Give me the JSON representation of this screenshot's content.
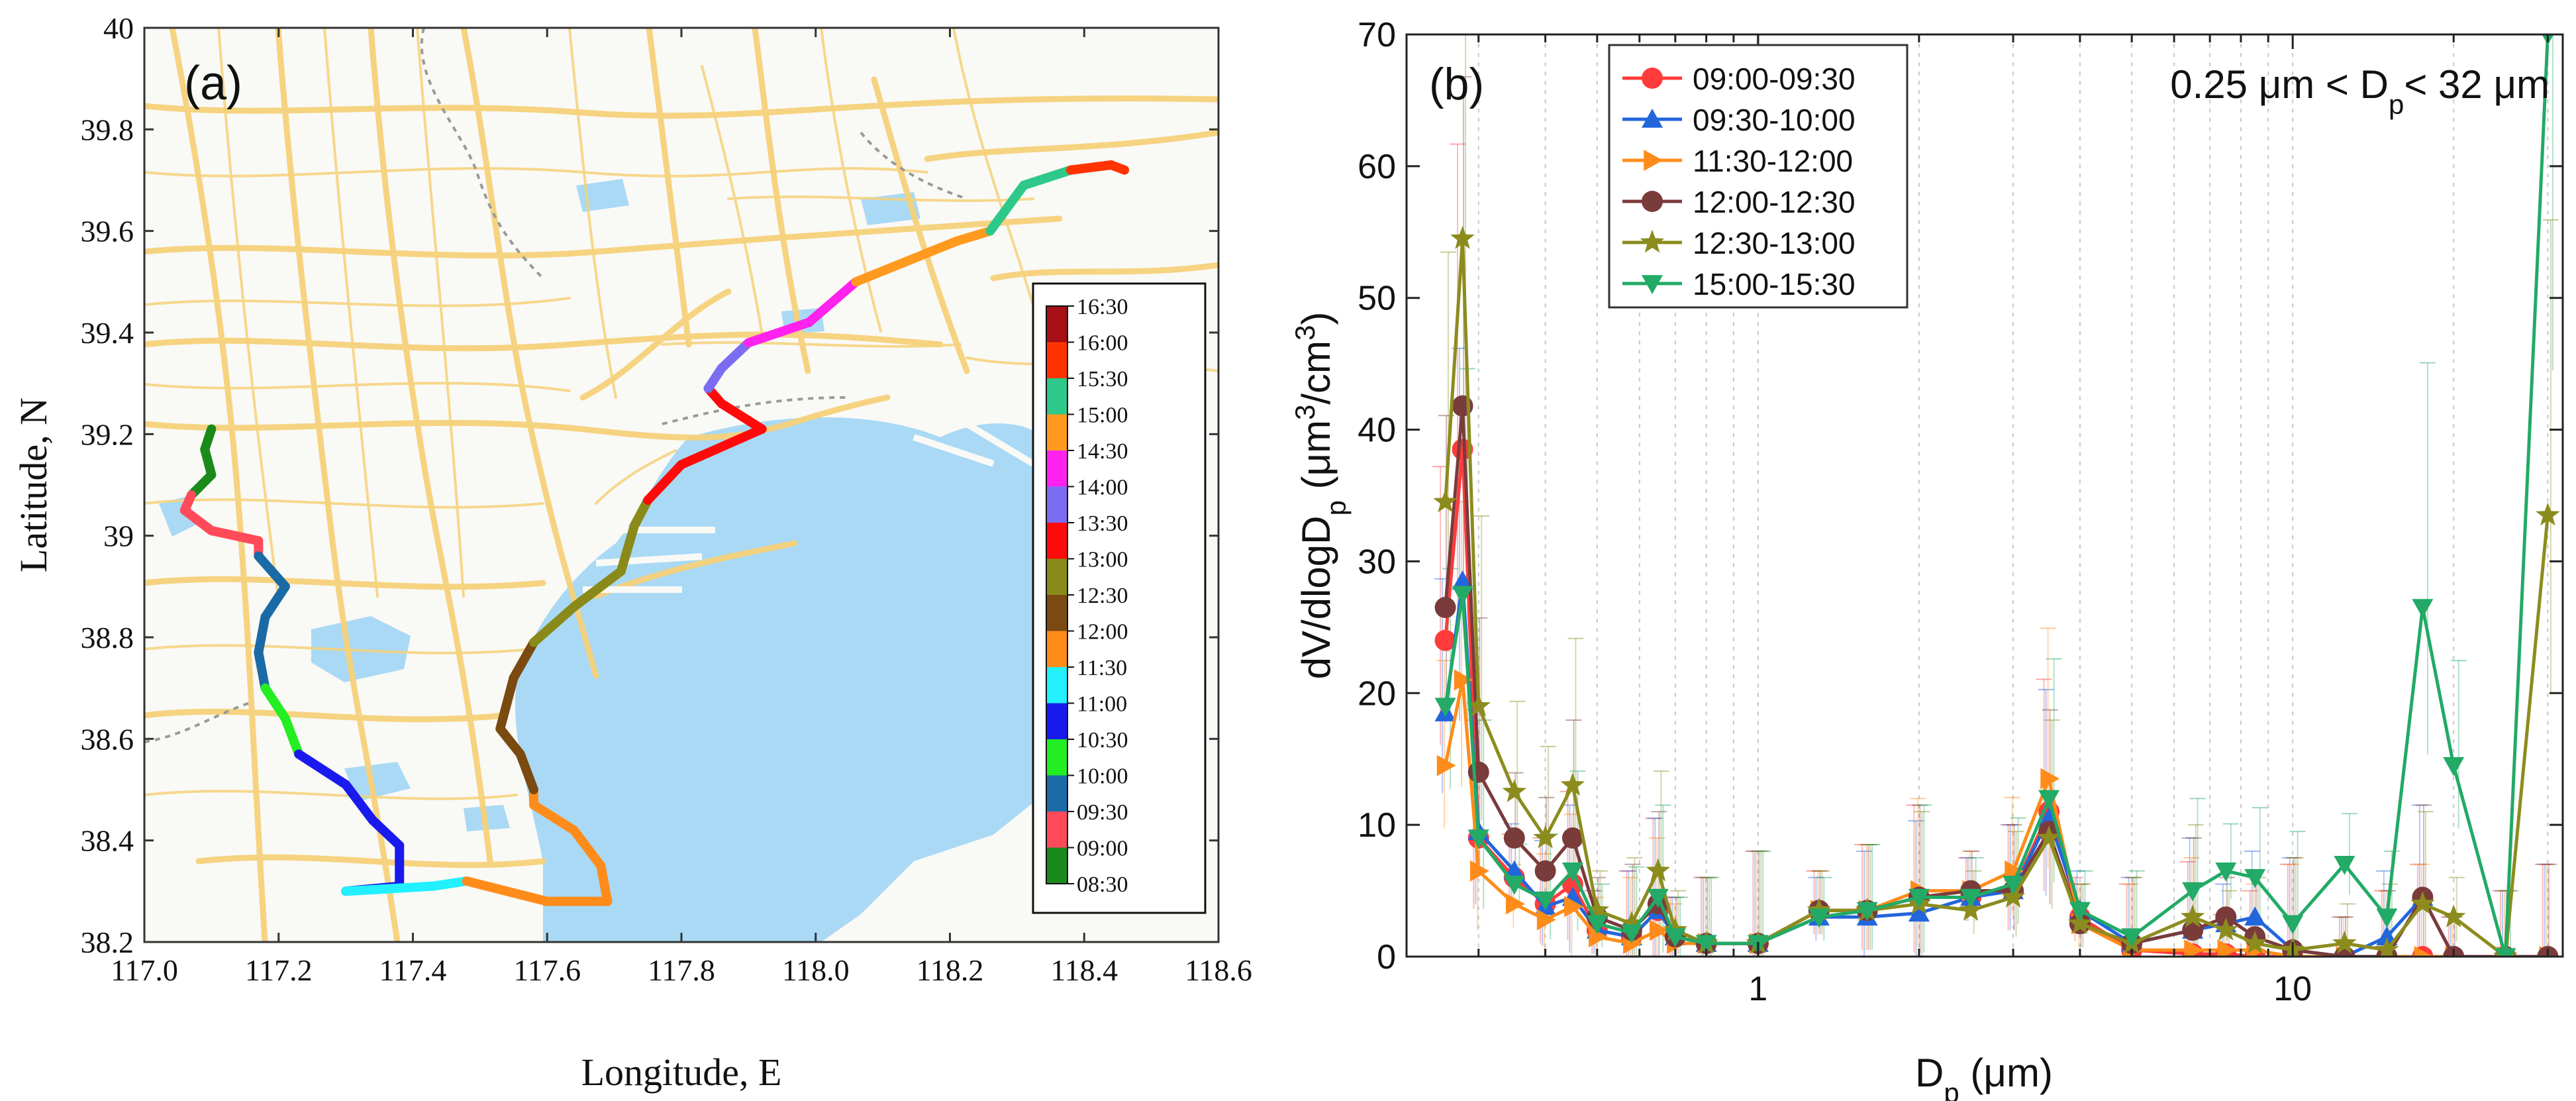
{
  "figure": "Ship-track map and particle volume size distribution",
  "chart_data": [
    {
      "panel": "a",
      "type": "map",
      "panel_label": "(a)",
      "xlabel": "Longitude, E",
      "ylabel": "Latitude, N",
      "xlim": [
        117.0,
        118.6
      ],
      "ylim": [
        38.2,
        40.0
      ],
      "x_ticks": [
        "117.0",
        "117.2",
        "117.4",
        "117.6",
        "117.8",
        "118.0",
        "118.2",
        "118.4",
        "118.6"
      ],
      "y_ticks": [
        "38.2",
        "38.4",
        "38.6",
        "38.8",
        "39",
        "39.2",
        "39.4",
        "39.6",
        "39.8",
        "40"
      ],
      "legend_labels": [
        "16:30",
        "16:00",
        "15:30",
        "15:00",
        "14:30",
        "14:00",
        "13:30",
        "13:00",
        "12:30",
        "12:00",
        "11:30",
        "11:00",
        "10:30",
        "10:00",
        "09:30",
        "09:00",
        "08:30"
      ],
      "legend_colors": [
        "#a50f15",
        "#ff3300",
        "#2ec98a",
        "#ff9a1f",
        "#ff22ee",
        "#7b6cf2",
        "#ff0a0a",
        "#8a8a1a",
        "#7a4a10",
        "#ff8c1a",
        "#22f0ff",
        "#1a1aee",
        "#22ee22",
        "#1a6aa6",
        "#ff4a5a",
        "#1a8a1a"
      ],
      "track": [
        {
          "lon": 117.1,
          "lat": 39.21,
          "color": "#1a8a1a"
        },
        {
          "lon": 117.09,
          "lat": 39.17,
          "color": "#1a8a1a"
        },
        {
          "lon": 117.1,
          "lat": 39.12,
          "color": "#1a8a1a"
        },
        {
          "lon": 117.07,
          "lat": 39.08,
          "color": "#ff4a5a"
        },
        {
          "lon": 117.06,
          "lat": 39.05,
          "color": "#ff4a5a"
        },
        {
          "lon": 117.1,
          "lat": 39.01,
          "color": "#ff4a5a"
        },
        {
          "lon": 117.17,
          "lat": 38.99,
          "color": "#ff4a5a"
        },
        {
          "lon": 117.17,
          "lat": 38.96,
          "color": "#1a6aa6"
        },
        {
          "lon": 117.21,
          "lat": 38.9,
          "color": "#1a6aa6"
        },
        {
          "lon": 117.18,
          "lat": 38.84,
          "color": "#1a6aa6"
        },
        {
          "lon": 117.17,
          "lat": 38.77,
          "color": "#1a6aa6"
        },
        {
          "lon": 117.18,
          "lat": 38.7,
          "color": "#22ee22"
        },
        {
          "lon": 117.21,
          "lat": 38.64,
          "color": "#22ee22"
        },
        {
          "lon": 117.23,
          "lat": 38.57,
          "color": "#1a1aee"
        },
        {
          "lon": 117.3,
          "lat": 38.51,
          "color": "#1a1aee"
        },
        {
          "lon": 117.34,
          "lat": 38.44,
          "color": "#1a1aee"
        },
        {
          "lon": 117.38,
          "lat": 38.39,
          "color": "#1a1aee"
        },
        {
          "lon": 117.38,
          "lat": 38.31,
          "color": "#1a1aee"
        },
        {
          "lon": 117.3,
          "lat": 38.3,
          "color": "#22f0ff"
        },
        {
          "lon": 117.43,
          "lat": 38.31,
          "color": "#22f0ff"
        },
        {
          "lon": 117.48,
          "lat": 38.32,
          "color": "#ff8c1a"
        },
        {
          "lon": 117.6,
          "lat": 38.28,
          "color": "#ff8c1a"
        },
        {
          "lon": 117.69,
          "lat": 38.28,
          "color": "#ff8c1a"
        },
        {
          "lon": 117.68,
          "lat": 38.35,
          "color": "#ff8c1a"
        },
        {
          "lon": 117.64,
          "lat": 38.42,
          "color": "#ff8c1a"
        },
        {
          "lon": 117.58,
          "lat": 38.47,
          "color": "#ff8c1a"
        },
        {
          "lon": 117.58,
          "lat": 38.5,
          "color": "#7a4a10"
        },
        {
          "lon": 117.56,
          "lat": 38.57,
          "color": "#7a4a10"
        },
        {
          "lon": 117.53,
          "lat": 38.62,
          "color": "#7a4a10"
        },
        {
          "lon": 117.55,
          "lat": 38.72,
          "color": "#7a4a10"
        },
        {
          "lon": 117.58,
          "lat": 38.79,
          "color": "#8a8a1a"
        },
        {
          "lon": 117.64,
          "lat": 38.86,
          "color": "#8a8a1a"
        },
        {
          "lon": 117.71,
          "lat": 38.93,
          "color": "#8a8a1a"
        },
        {
          "lon": 117.73,
          "lat": 39.02,
          "color": "#8a8a1a"
        },
        {
          "lon": 117.75,
          "lat": 39.07,
          "color": "#ff0a0a"
        },
        {
          "lon": 117.8,
          "lat": 39.14,
          "color": "#ff0a0a"
        },
        {
          "lon": 117.92,
          "lat": 39.21,
          "color": "#ff0a0a"
        },
        {
          "lon": 117.86,
          "lat": 39.26,
          "color": "#ff0a0a"
        },
        {
          "lon": 117.84,
          "lat": 39.29,
          "color": "#7b6cf2"
        },
        {
          "lon": 117.86,
          "lat": 39.33,
          "color": "#7b6cf2"
        },
        {
          "lon": 117.9,
          "lat": 39.38,
          "color": "#ff22ee"
        },
        {
          "lon": 117.99,
          "lat": 39.42,
          "color": "#ff22ee"
        },
        {
          "lon": 118.06,
          "lat": 39.5,
          "color": "#ff9a1f"
        },
        {
          "lon": 118.21,
          "lat": 39.58,
          "color": "#ff9a1f"
        },
        {
          "lon": 118.26,
          "lat": 39.6,
          "color": "#2ec98a"
        },
        {
          "lon": 118.31,
          "lat": 39.69,
          "color": "#2ec98a"
        },
        {
          "lon": 118.38,
          "lat": 39.72,
          "color": "#ff3300"
        },
        {
          "lon": 118.44,
          "lat": 39.73,
          "color": "#ff3300"
        },
        {
          "lon": 118.46,
          "lat": 39.72,
          "color": "#a50f15"
        }
      ]
    },
    {
      "panel": "b",
      "type": "line",
      "panel_label": "(b)",
      "annotation_prefix": "0.25 μm < D",
      "annotation_sub": "p",
      "annotation_suffix": "< 32 μm",
      "xlabel": "D",
      "xlabel_sub": "p",
      "xlabel_unit": " (μm)",
      "ylabel_prefix": "dV/dlogD",
      "ylabel_sub": "p",
      "ylabel_unit_a": " (μm",
      "ylabel_unit_sup1": "3",
      "ylabel_unit_b": "/cm",
      "ylabel_unit_sup2": "3",
      "ylabel_unit_c": ")",
      "x_scale": "log",
      "xlim": [
        0.22,
        32
      ],
      "ylim": [
        0,
        70
      ],
      "x_tick_labels": [
        "1",
        "10"
      ],
      "y_ticks": [
        0,
        10,
        20,
        30,
        40,
        50,
        60,
        70
      ],
      "x": [
        0.26,
        0.28,
        0.3,
        0.35,
        0.4,
        0.45,
        0.5,
        0.58,
        0.65,
        0.7,
        0.8,
        1.0,
        1.3,
        1.6,
        2.0,
        2.5,
        3.0,
        3.5,
        4.0,
        5.0,
        6.5,
        7.5,
        8.5,
        10.0,
        12.5,
        15.0,
        17.5,
        20.0,
        25.0,
        30.0
      ],
      "series": [
        {
          "name": "09:00-09:30",
          "color": "#ff3b3b",
          "marker": "circle",
          "values": [
            24,
            38.5,
            9,
            6,
            4,
            5.5,
            2,
            1.5,
            3.5,
            1.5,
            1,
            1,
            3.5,
            3.5,
            4.5,
            4.5,
            5,
            11,
            3,
            0.5,
            0.2,
            0.2,
            0,
            0,
            0,
            0,
            0,
            0,
            0,
            0
          ]
        },
        {
          "name": "09:30-10:00",
          "color": "#2266dd",
          "marker": "triangle-up",
          "values": [
            18.5,
            28.5,
            9.5,
            6.5,
            3.8,
            4.5,
            2,
            1.5,
            3.5,
            1.5,
            1,
            1,
            3,
            3,
            3.3,
            4.5,
            5,
            10.5,
            3.5,
            1,
            2,
            2.5,
            3,
            0.5,
            0,
            1.5,
            4.5,
            0,
            0,
            0
          ]
        },
        {
          "name": "11:30-12:00",
          "color": "#ff8c1a",
          "marker": "triangle-right",
          "values": [
            14.5,
            21,
            6.5,
            4,
            2.8,
            3.8,
            1.5,
            1,
            2,
            1,
            1,
            1,
            3.5,
            3.5,
            5,
            5,
            6.5,
            13.5,
            2.5,
            0.5,
            0.5,
            0.5,
            0.5,
            0,
            0,
            0,
            0,
            0,
            0,
            0
          ]
        },
        {
          "name": "12:00-12:30",
          "color": "#7a3b3b",
          "marker": "circle",
          "values": [
            26.5,
            41.8,
            14,
            9,
            6.5,
            9,
            3,
            2,
            4,
            1.5,
            1,
            1,
            3.5,
            3.5,
            4.5,
            5,
            5,
            9.5,
            2.5,
            1,
            2,
            3,
            1.5,
            0.5,
            0,
            0,
            4.5,
            0,
            0,
            0
          ]
        },
        {
          "name": "12:30-13:00",
          "color": "#8c8c1e",
          "marker": "star",
          "values": [
            34.5,
            54.5,
            19,
            12.5,
            9,
            13,
            3.5,
            2.5,
            6.5,
            2,
            1,
            1,
            3.5,
            3.5,
            4,
            3.5,
            4.5,
            9,
            2.5,
            1,
            3,
            2,
            1,
            0.5,
            1,
            0.5,
            4,
            3,
            0,
            33.5
          ]
        },
        {
          "name": "15:00-15:30",
          "color": "#22aa66",
          "marker": "triangle-down",
          "values": [
            19,
            27.5,
            9,
            5.5,
            4.3,
            6.5,
            2.5,
            1.8,
            4.5,
            1.5,
            1,
            1,
            3,
            3.5,
            4.5,
            4.5,
            5.5,
            12,
            3.5,
            1.5,
            5,
            6.5,
            6,
            2.5,
            7,
            3,
            26.5,
            14.5,
            0,
            70
          ]
        }
      ]
    }
  ]
}
